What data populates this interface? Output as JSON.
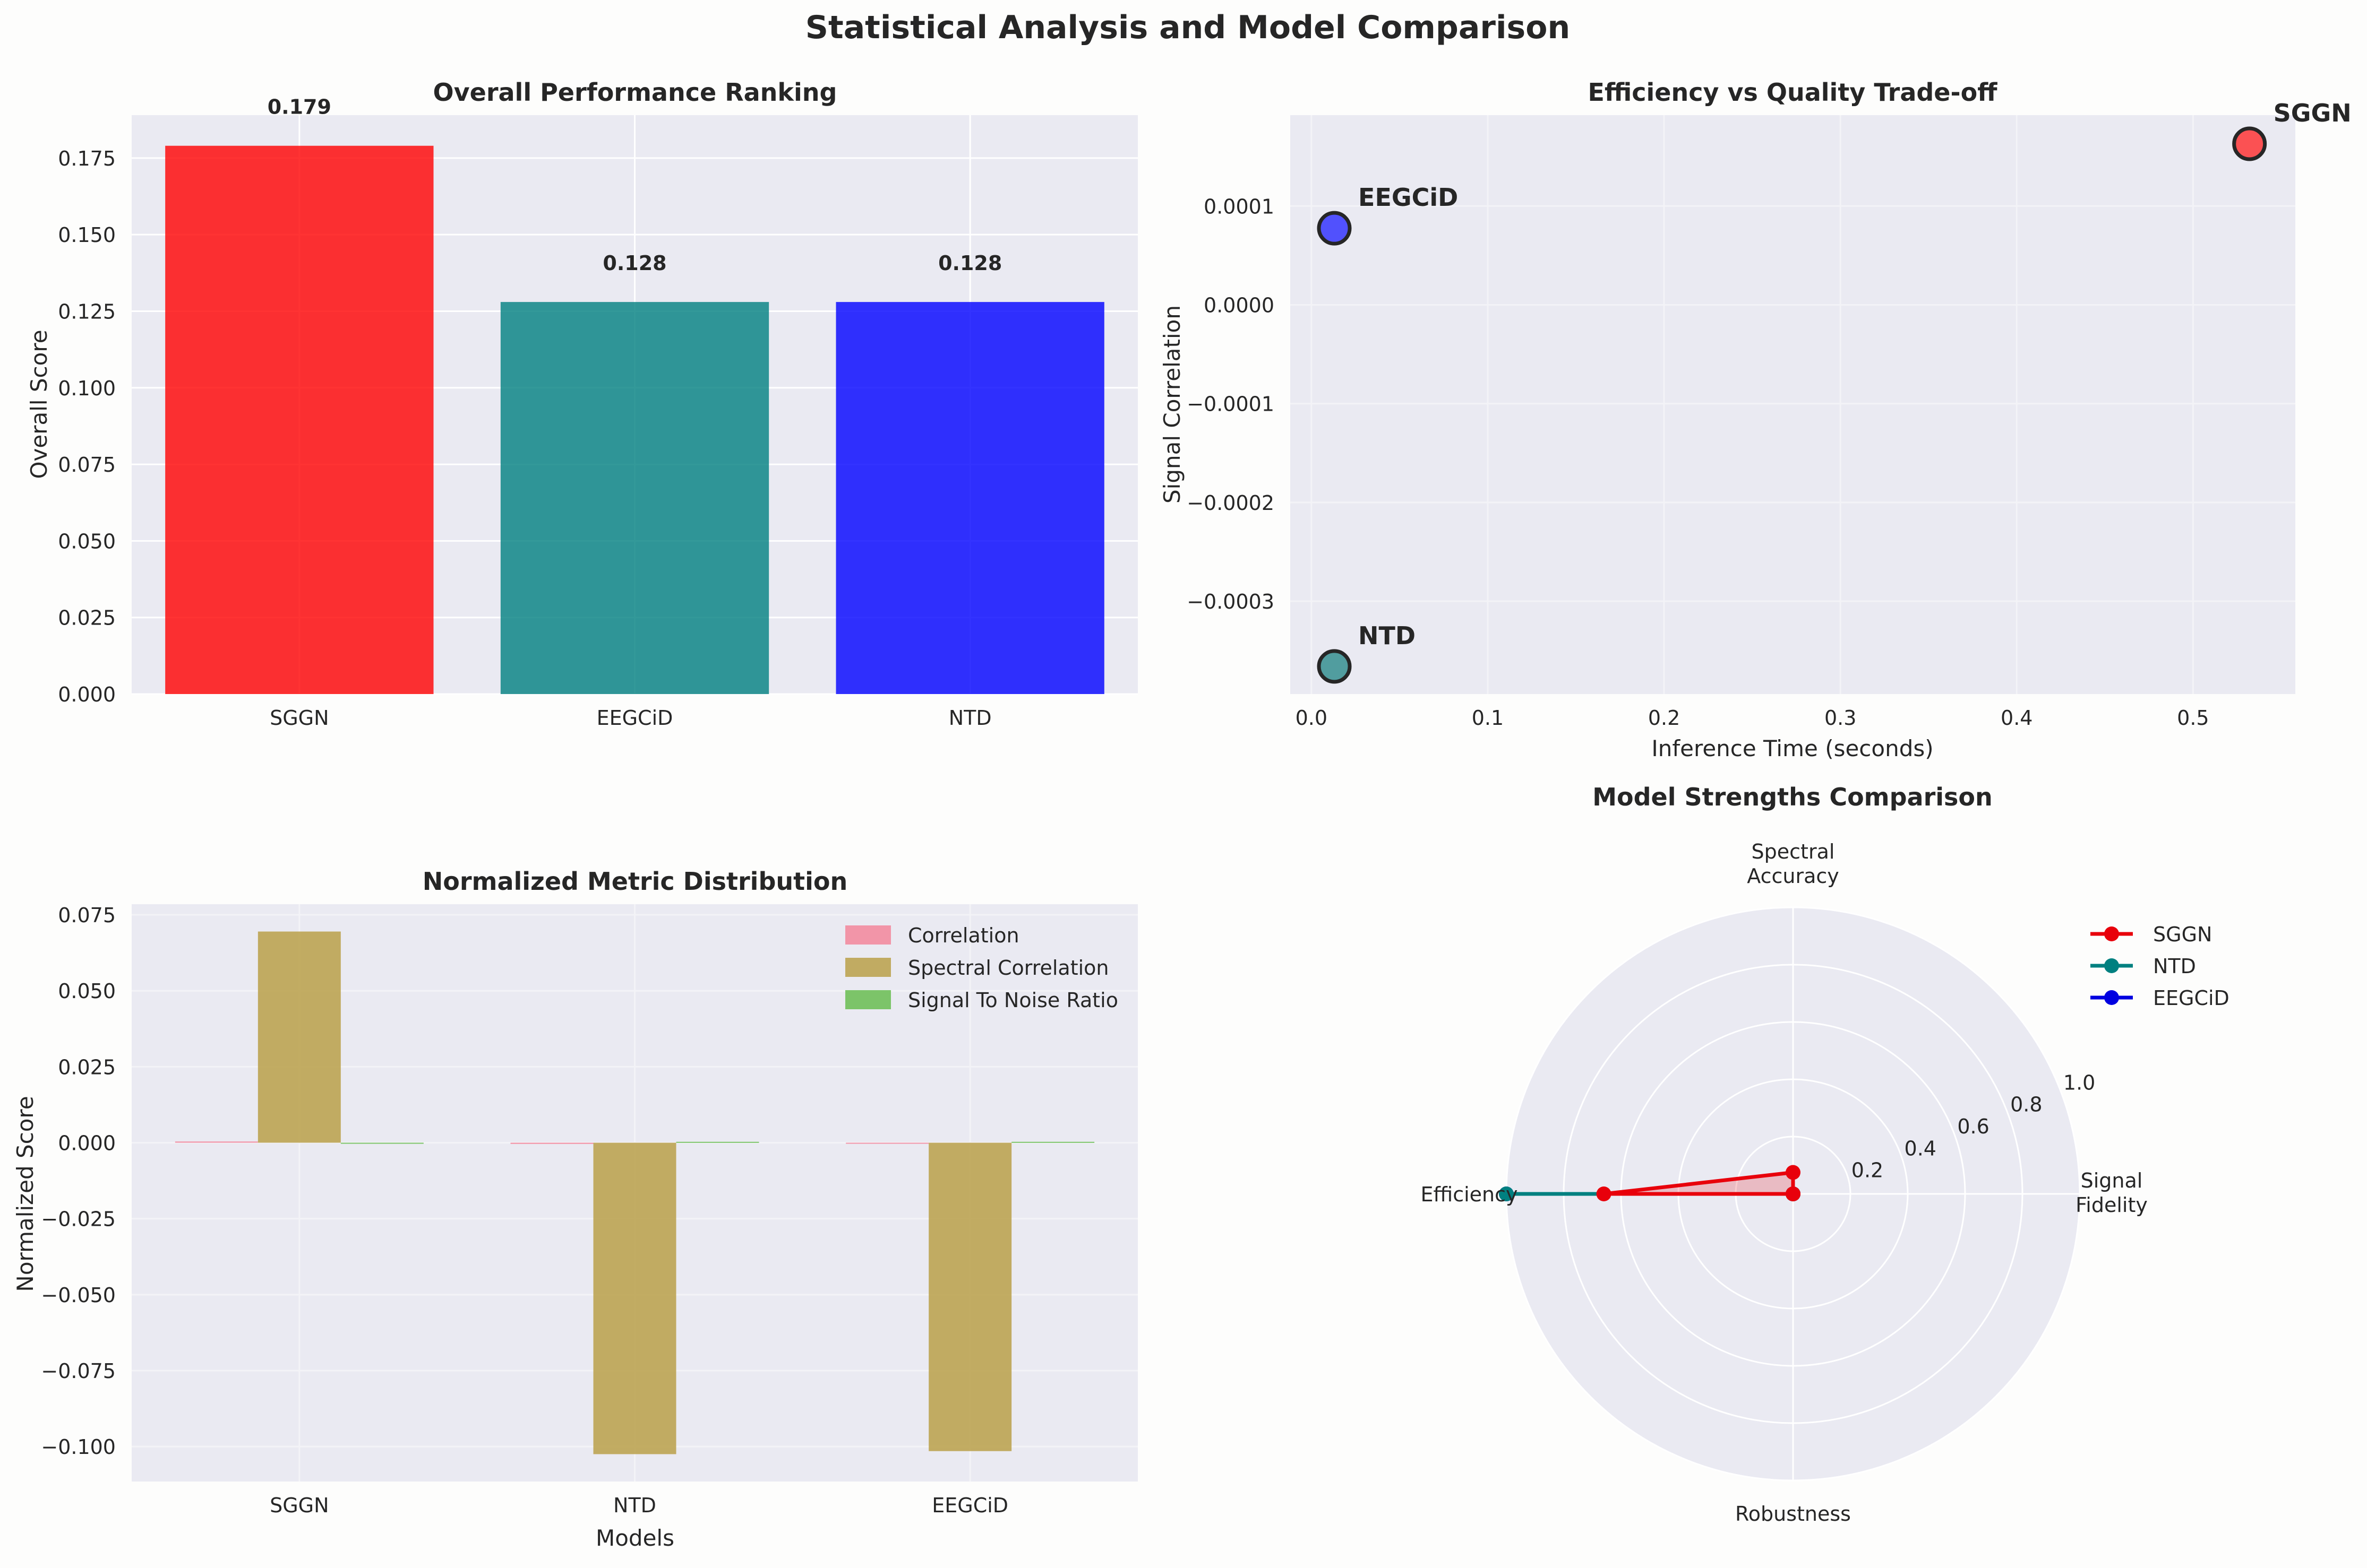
{
  "figure_title": "Statistical Analysis and Model Comparison",
  "chart_data": [
    {
      "type": "bar",
      "title": "Overall Performance Ranking",
      "xlabel": "",
      "ylabel": "Overall Score",
      "categories": [
        "SGGN",
        "EEGCiD",
        "NTD"
      ],
      "values": [
        0.179,
        0.128,
        0.128
      ],
      "value_labels": [
        "0.179",
        "0.128",
        "0.128"
      ],
      "colors": [
        "#ff0000",
        "#008080",
        "#0000ff"
      ],
      "ylim": [
        0,
        0.189
      ],
      "yticks": [
        0.0,
        0.025,
        0.05,
        0.075,
        0.1,
        0.125,
        0.15,
        0.175
      ],
      "ytick_labels": [
        "0.000",
        "0.025",
        "0.050",
        "0.075",
        "0.100",
        "0.125",
        "0.150",
        "0.175"
      ]
    },
    {
      "type": "scatter",
      "title": "Efficiency vs Quality Trade-off",
      "xlabel": "Inference Time (seconds)",
      "ylabel": "Signal Correlation",
      "points": [
        {
          "label": "SGGN",
          "x": 0.532,
          "y": 0.000163,
          "color": "#ff2a2a"
        },
        {
          "label": "EEGCiD",
          "x": 0.013,
          "y": 7.75e-05,
          "color": "#2a2aff"
        },
        {
          "label": "NTD",
          "x": 0.013,
          "y": -0.000366,
          "color": "#2a8a8a"
        }
      ],
      "xlim": [
        -0.012,
        0.558
      ],
      "ylim": [
        -0.000394,
        0.000192
      ],
      "xticks": [
        0.0,
        0.1,
        0.2,
        0.3,
        0.4,
        0.5
      ],
      "xtick_labels": [
        "0.0",
        "0.1",
        "0.2",
        "0.3",
        "0.4",
        "0.5"
      ],
      "yticks": [
        0.0001,
        0.0,
        -0.0001,
        -0.0002,
        -0.0003
      ],
      "ytick_labels": [
        "0.0001",
        "0.0000",
        "−0.0001",
        "−0.0002",
        "−0.0003"
      ]
    },
    {
      "type": "bar",
      "title": "Normalized Metric Distribution",
      "xlabel": "Models",
      "ylabel": "Normalized Score",
      "categories": [
        "SGGN",
        "NTD",
        "EEGCiD"
      ],
      "series": [
        {
          "name": "Correlation",
          "values": [
            0.0004,
            -0.0004,
            0.0
          ],
          "color": "#f38ca0"
        },
        {
          "name": "Spectral Correlation",
          "values": [
            0.0695,
            -0.1025,
            -0.1015
          ],
          "color": "#bda452"
        },
        {
          "name": "Signal To Noise Ratio",
          "values": [
            -0.0003,
            0.0003,
            0.0003
          ],
          "color": "#70c05a"
        }
      ],
      "ylim": [
        -0.1115,
        0.0785
      ],
      "yticks": [
        0.075,
        0.05,
        0.025,
        0.0,
        -0.025,
        -0.05,
        -0.075,
        -0.1
      ],
      "ytick_labels": [
        "0.075",
        "0.050",
        "0.025",
        "0.000",
        "−0.025",
        "−0.050",
        "−0.075",
        "−0.100"
      ],
      "legend": "top-right"
    },
    {
      "type": "radar",
      "title": "Model Strengths Comparison",
      "axes": [
        "Signal\nFidelity",
        "Spectral\nAccuracy",
        "Efficiency",
        "Robustness"
      ],
      "rlim": [
        0,
        1.0
      ],
      "rticks": [
        0.2,
        0.4,
        0.6,
        0.8,
        1.0
      ],
      "rtick_labels": [
        "0.2",
        "0.4",
        "0.6",
        "0.8",
        "1.0"
      ],
      "series": [
        {
          "name": "SGGN",
          "values": [
            0.0,
            0.075,
            0.66,
            0.0
          ],
          "color": "#e8000b"
        },
        {
          "name": "NTD",
          "values": [
            0.0,
            0.0,
            1.0,
            0.0
          ],
          "color": "#008080"
        },
        {
          "name": "EEGCiD",
          "values": [
            0.0,
            0.0,
            1.0,
            0.0
          ],
          "color": "#0000e0"
        }
      ],
      "legend": "top-right"
    }
  ]
}
